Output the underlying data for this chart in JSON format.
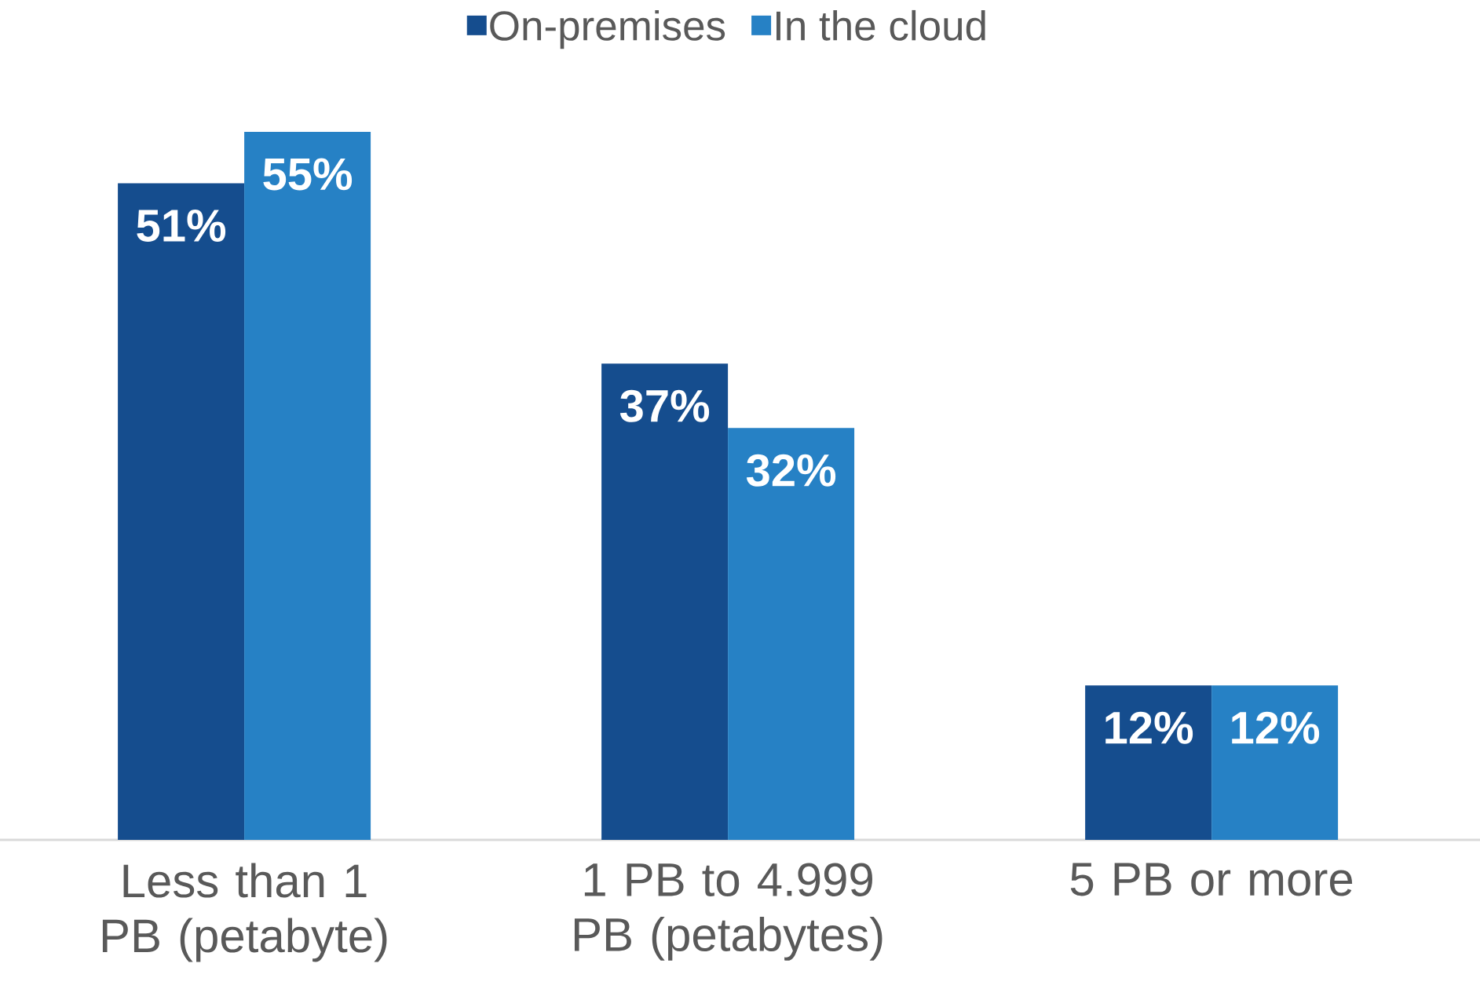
{
  "chart_data": {
    "type": "bar",
    "categories": [
      "Less than 1 PB (petabyte)",
      "1 PB to 4.999 PB (petabytes)",
      "5 PB or more"
    ],
    "series": [
      {
        "name": "On-premises",
        "color": "#154d8e",
        "values": [
          51,
          37,
          12
        ],
        "value_labels": [
          "51%",
          "37%",
          "12%"
        ]
      },
      {
        "name": "In the cloud",
        "color": "#2681c5",
        "values": [
          55,
          32,
          12
        ],
        "value_labels": [
          "55%",
          "32%",
          "12%"
        ]
      }
    ],
    "legend": "top",
    "grid": false
  }
}
